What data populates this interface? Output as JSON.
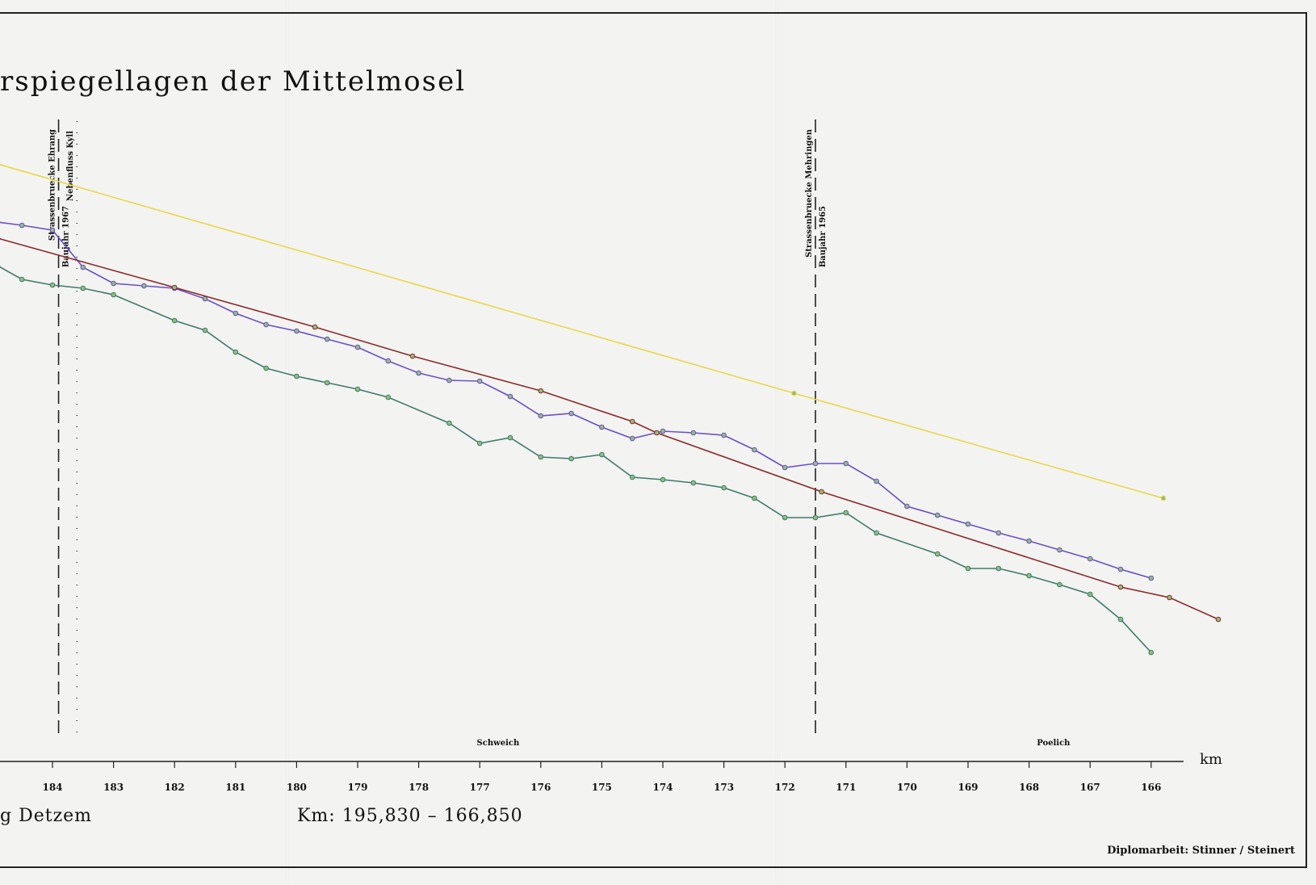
{
  "title": "rspiegellagen der Mittelmosel",
  "footer": {
    "section": "g Detzem",
    "km_range": "Km: 195,830 – 166,850",
    "credit": "Diplomarbeit: Stinner / Steinert"
  },
  "colors": {
    "frame": "#222222",
    "yellow": "#e9d84a",
    "purple": "#6a4fc8",
    "red": "#8b2a2a",
    "teal": "#3f7a6d"
  },
  "chart_data": {
    "type": "line",
    "xlabel": "km",
    "ylabel": "",
    "x_direction": "reversed",
    "xlim": [
      185,
      165.5
    ],
    "ylim": [
      0,
      1
    ],
    "x_ticks": [
      184,
      183,
      182,
      181,
      180,
      179,
      178,
      177,
      176,
      175,
      174,
      173,
      172,
      171,
      170,
      169,
      168,
      167,
      166
    ],
    "grid": false,
    "places": [
      {
        "name": "Schweich",
        "km": 176.7
      },
      {
        "name": "Poelich",
        "km": 167.6
      }
    ],
    "markers": [
      {
        "label": "Strassenbruecke Ehrang",
        "sublabel": "Baujahr 1967",
        "km": 183.9,
        "style": "dashed"
      },
      {
        "label": "Nebenfluss Kyll",
        "km": 183.6,
        "style": "dotted"
      },
      {
        "label": "Strassenbruecke Mehringen",
        "sublabel": "Baujahr 1965",
        "km": 171.5,
        "style": "dashed"
      }
    ],
    "series": [
      {
        "color": "#e9d84a",
        "x": [
          184.9,
          171.85,
          165.8
        ],
        "y": [
          0.74,
          0.456,
          0.326
        ]
      },
      {
        "color": "#6a4fc8",
        "x": [
          184.9,
          184.5,
          184.0,
          183.5,
          183.0,
          182.5,
          182.0,
          181.5,
          181.0,
          180.5,
          180.0,
          179.5,
          179.0,
          178.5,
          178.0,
          177.5,
          177.0,
          176.5,
          176.0,
          175.5,
          175.0,
          174.5,
          174.0,
          173.5,
          173.0,
          172.5,
          172.0,
          171.5,
          171.0,
          170.5,
          170.0,
          169.5,
          169.0,
          168.5,
          168.0,
          167.5,
          167.0,
          166.5,
          166.0
        ],
        "y": [
          0.668,
          0.664,
          0.658,
          0.612,
          0.592,
          0.589,
          0.586,
          0.573,
          0.555,
          0.541,
          0.533,
          0.523,
          0.513,
          0.496,
          0.481,
          0.472,
          0.471,
          0.452,
          0.428,
          0.431,
          0.414,
          0.4,
          0.409,
          0.407,
          0.404,
          0.386,
          0.364,
          0.369,
          0.369,
          0.347,
          0.316,
          0.305,
          0.294,
          0.283,
          0.273,
          0.262,
          0.251,
          0.238,
          0.227
        ]
      },
      {
        "color": "#8b2a2a",
        "x": [
          184.9,
          182.0,
          179.7,
          178.1,
          176.0,
          174.5,
          174.1,
          171.4,
          166.5,
          165.7,
          164.9
        ],
        "y": [
          0.648,
          0.587,
          0.538,
          0.502,
          0.459,
          0.421,
          0.407,
          0.334,
          0.216,
          0.203,
          0.176
        ]
      },
      {
        "color": "#3f7a6d",
        "x": [
          184.9,
          184.5,
          184.0,
          183.5,
          183.0,
          182.0,
          181.5,
          181.0,
          180.5,
          180.0,
          179.5,
          179.0,
          178.5,
          177.5,
          177.0,
          176.5,
          176.0,
          175.5,
          175.0,
          174.5,
          174.0,
          173.5,
          173.0,
          172.5,
          172.0,
          171.5,
          171.0,
          170.5,
          169.5,
          169.0,
          168.5,
          168.0,
          167.5,
          167.0,
          166.5,
          166.0
        ],
        "y": [
          0.614,
          0.597,
          0.59,
          0.586,
          0.578,
          0.546,
          0.534,
          0.507,
          0.487,
          0.477,
          0.469,
          0.461,
          0.451,
          0.419,
          0.394,
          0.401,
          0.377,
          0.375,
          0.38,
          0.352,
          0.349,
          0.345,
          0.339,
          0.326,
          0.302,
          0.302,
          0.308,
          0.283,
          0.257,
          0.239,
          0.239,
          0.23,
          0.219,
          0.207,
          0.176,
          0.135
        ]
      }
    ]
  }
}
